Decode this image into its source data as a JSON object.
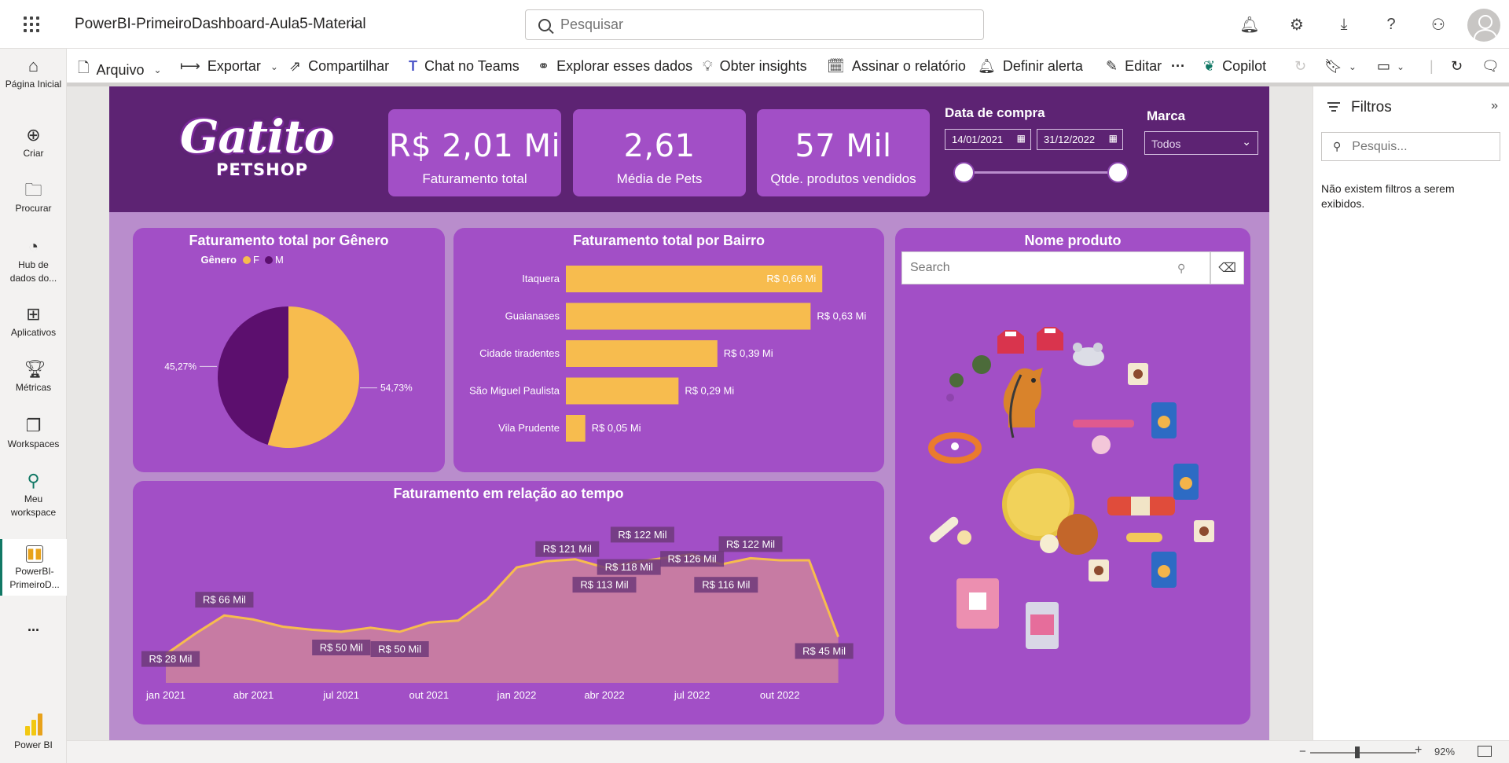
{
  "app": {
    "report_title": "PowerBI-PrimeiroDashboard-Aula5-Material",
    "search_placeholder": "Pesquisar"
  },
  "nav": {
    "items": [
      {
        "label": "Página Inicial"
      },
      {
        "label": "Criar"
      },
      {
        "label": "Procurar"
      },
      {
        "label": "Hub de dados do..."
      },
      {
        "label": "Aplicativos"
      },
      {
        "label": "Métricas"
      },
      {
        "label": "Workspaces"
      },
      {
        "label": "Meu workspace"
      },
      {
        "label": "PowerBI-PrimeiroD..."
      },
      {
        "label": "..."
      }
    ],
    "footer": "Power BI"
  },
  "ribbon": {
    "arquivo": "Arquivo",
    "exportar": "Exportar",
    "compartilhar": "Compartilhar",
    "chat_teams": "Chat no Teams",
    "explorar": "Explorar esses dados",
    "insights": "Obter insights",
    "assinar": "Assinar o relatório",
    "alerta": "Definir alerta",
    "editar": "Editar",
    "more": "···",
    "copilot": "Copilot"
  },
  "report": {
    "logo_top": "Gatito",
    "logo_bottom": "PETSHOP",
    "kpis": [
      {
        "value": "R$ 2,01 Mi",
        "label": "Faturamento total"
      },
      {
        "value": "2,61",
        "label": "Média de Pets"
      },
      {
        "value": "57 Mil",
        "label": "Qtde. produtos vendidos"
      }
    ],
    "date_slicer": {
      "title": "Data de compra",
      "start": "14/01/2021",
      "end": "31/12/2022"
    },
    "brand_slicer": {
      "title": "Marca",
      "value": "Todos"
    },
    "product_slicer": {
      "title": "Nome produto",
      "placeholder": "Search"
    }
  },
  "filters": {
    "title": "Filtros",
    "search_placeholder": "Pesquis...",
    "empty_message": "Não existem filtros a serem exibidos."
  },
  "status": {
    "zoom": "92%"
  },
  "colors": {
    "header": "#5d2373",
    "card": "#a24fc6",
    "canvas": "#b98dcc",
    "yellow": "#f7bc4e",
    "dark_purple": "#5c0f6e",
    "area": "#c77ba3"
  },
  "chart_data": [
    {
      "type": "pie",
      "title": "Faturamento total por Gênero",
      "legend_title": "Gênero",
      "legend_placement": "top",
      "slices": [
        {
          "name": "F",
          "value": 54.73,
          "label": "54,73%",
          "color": "#f7bc4e"
        },
        {
          "name": "M",
          "value": 45.27,
          "label": "45,27%",
          "color": "#5c0f6e"
        }
      ]
    },
    {
      "type": "bar",
      "orientation": "horizontal",
      "title": "Faturamento total por Bairro",
      "categories": [
        "Itaquera",
        "Guaianases",
        "Cidade tiradentes",
        "São Miguel Paulista",
        "Vila Prudente"
      ],
      "values": [
        0.66,
        0.63,
        0.39,
        0.29,
        0.05
      ],
      "value_labels": [
        "R$ 0,66 Mi",
        "R$ 0,63 Mi",
        "R$ 0,39 Mi",
        "R$ 0,29 Mi",
        "R$ 0,05 Mi"
      ],
      "unit": "R$ Mi"
    },
    {
      "type": "area",
      "title": "Faturamento em relação ao tempo",
      "x_ticks": [
        "jan 2021",
        "abr 2021",
        "jul 2021",
        "out 2021",
        "jan 2022",
        "abr 2022",
        "jul 2022",
        "out 2022"
      ],
      "x": [
        "2021-01",
        "2021-02",
        "2021-03",
        "2021-04",
        "2021-05",
        "2021-06",
        "2021-07",
        "2021-08",
        "2021-09",
        "2021-10",
        "2021-11",
        "2021-12",
        "2022-01",
        "2022-02",
        "2022-03",
        "2022-04",
        "2022-05",
        "2022-06",
        "2022-07",
        "2022-08",
        "2022-09",
        "2022-10",
        "2022-11",
        "2022-12"
      ],
      "values": [
        28,
        48,
        66,
        62,
        55,
        52,
        50,
        54,
        50,
        59,
        61,
        82,
        113,
        119,
        121,
        113,
        118,
        122,
        126,
        116,
        122,
        120,
        120,
        45
      ],
      "labels": [
        {
          "index": 0,
          "text": "R$ 28 Mil"
        },
        {
          "index": 2,
          "text": "R$ 66 Mil"
        },
        {
          "index": 6,
          "text": "R$ 50 Mil"
        },
        {
          "index": 8,
          "text": "R$ 50 Mil"
        },
        {
          "index": 14,
          "text": "R$ 121 Mil"
        },
        {
          "index": 15,
          "text": "R$ 113 Mil"
        },
        {
          "index": 16,
          "text": "R$ 118 Mil"
        },
        {
          "index": 17,
          "text": "R$ 122 Mil"
        },
        {
          "index": 18,
          "text": "R$ 126 Mil"
        },
        {
          "index": 19,
          "text": "R$ 116 Mil"
        },
        {
          "index": 20,
          "text": "R$ 122 Mil"
        },
        {
          "index": 23,
          "text": "R$ 45 Mil"
        }
      ],
      "unit": "R$ Mil"
    }
  ]
}
